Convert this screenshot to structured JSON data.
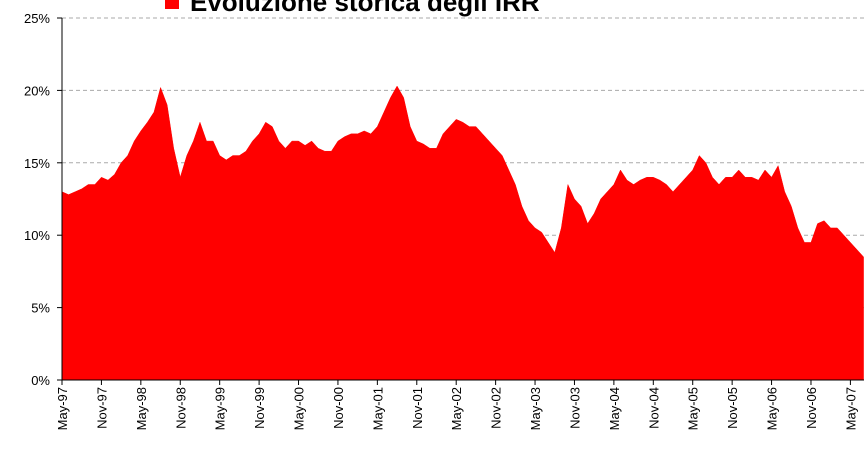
{
  "chart_data": {
    "type": "area",
    "categories": [
      "May-97",
      null,
      null,
      null,
      null,
      null,
      "Nov-97",
      null,
      null,
      null,
      null,
      null,
      "May-98",
      null,
      null,
      null,
      null,
      null,
      "Nov-98",
      null,
      null,
      null,
      null,
      null,
      "May-99",
      null,
      null,
      null,
      null,
      null,
      "Nov-99",
      null,
      null,
      null,
      null,
      null,
      "May-00",
      null,
      null,
      null,
      null,
      null,
      "Nov-00",
      null,
      null,
      null,
      null,
      null,
      "May-01",
      null,
      null,
      null,
      null,
      null,
      "Nov-01",
      null,
      null,
      null,
      null,
      null,
      "May-02",
      null,
      null,
      null,
      null,
      null,
      "Nov-02",
      null,
      null,
      null,
      null,
      null,
      "May-03",
      null,
      null,
      null,
      null,
      null,
      "Nov-03",
      null,
      null,
      null,
      null,
      null,
      "May-04",
      null,
      null,
      null,
      null,
      null,
      "Nov-04",
      null,
      null,
      null,
      null,
      null,
      "May-05",
      null,
      null,
      null,
      null,
      null,
      "Nov-05",
      null,
      null,
      null,
      null,
      null,
      "May-06",
      null,
      null,
      null,
      null,
      null,
      "Nov-06",
      null,
      null,
      null,
      null,
      null,
      "May-07",
      null,
      null
    ],
    "series": [
      {
        "name": "Evoluzione storica degli IRR",
        "color": "#ff0000",
        "values": [
          13,
          12.8,
          13,
          13.2,
          13.5,
          13.5,
          14,
          13.8,
          14.2,
          15,
          15.5,
          16.5,
          17.2,
          17.8,
          18.5,
          20.2,
          19,
          16,
          14,
          15.5,
          16.5,
          17.8,
          16.5,
          16.5,
          15.5,
          15.2,
          15.5,
          15.5,
          15.8,
          16.5,
          17,
          17.8,
          17.5,
          16.5,
          16,
          16.5,
          16.5,
          16.2,
          16.5,
          16,
          15.8,
          15.8,
          16.5,
          16.8,
          17,
          17,
          17.2,
          17,
          17.5,
          18.5,
          19.5,
          20.3,
          19.5,
          17.5,
          16.5,
          16.3,
          16,
          16,
          17,
          17.5,
          18,
          17.8,
          17.5,
          17.5,
          17,
          16.5,
          16,
          15.5,
          14.5,
          13.5,
          12,
          11,
          10.5,
          10.2,
          9.5,
          8.8,
          10.5,
          13.5,
          12.5,
          12,
          10.8,
          11.5,
          12.5,
          13,
          13.5,
          14.5,
          13.8,
          13.5,
          13.8,
          14,
          14,
          13.8,
          13.5,
          13,
          13.5,
          14,
          14.5,
          15.5,
          15,
          14,
          13.5,
          14,
          14,
          14.5,
          14,
          14,
          13.8,
          14.5,
          14,
          14.8,
          13,
          12,
          10.5,
          9.5,
          9.5,
          10.8,
          11,
          10.5,
          10.5,
          10,
          9.5,
          9,
          8.5
        ]
      }
    ],
    "ylim": [
      0,
      25
    ],
    "yticks": [
      {
        "value": 0,
        "label": "0%"
      },
      {
        "value": 5,
        "label": "5%"
      },
      {
        "value": 10,
        "label": "10%"
      },
      {
        "value": 15,
        "label": "15%"
      },
      {
        "value": 20,
        "label": "20%"
      },
      {
        "value": 25,
        "label": "25%"
      }
    ],
    "grid": true,
    "legend": "top"
  }
}
